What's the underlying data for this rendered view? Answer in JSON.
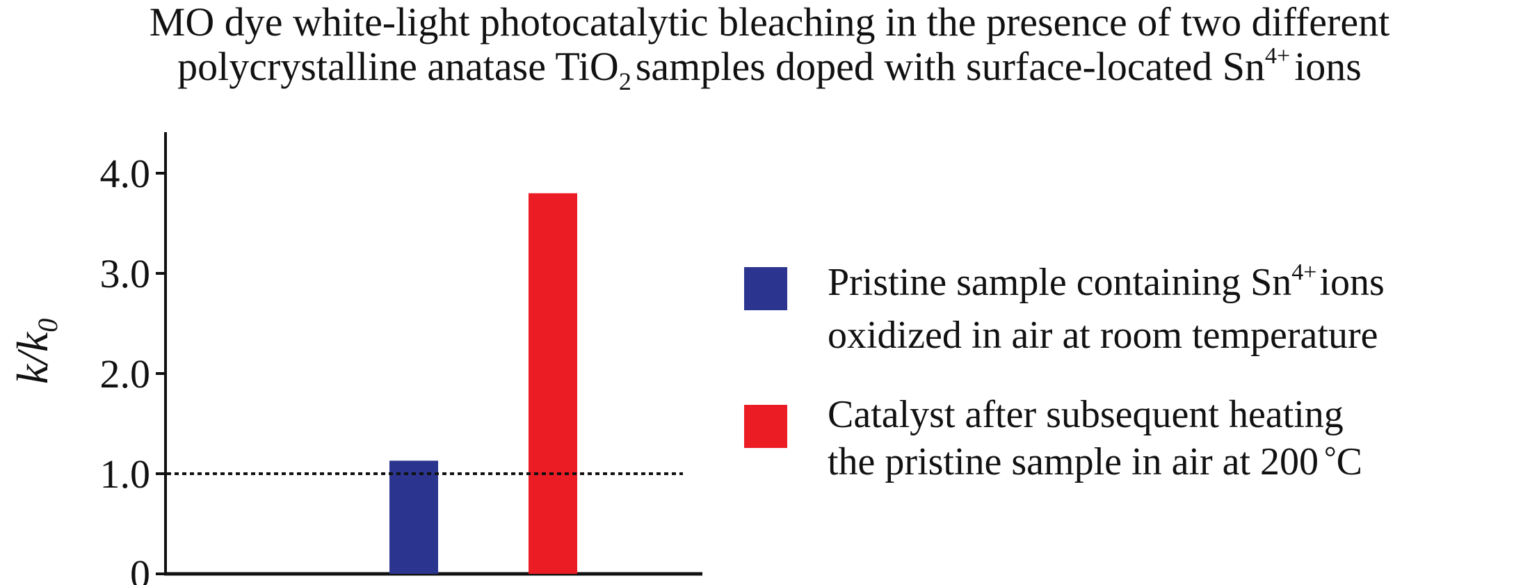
{
  "title": {
    "line1": "MO dye white-light photocatalytic bleaching in the presence of two different",
    "line2_a": "polycrystalline anatase TiO",
    "line2_sub": "2",
    "line2_b": "samples doped with surface-located Sn",
    "line2_sup": "4+",
    "line2_c": "ions"
  },
  "chart_data": {
    "type": "bar",
    "title": "MO dye white-light photocatalytic bleaching in the presence of two different polycrystalline anatase TiO2 samples doped with surface-located Sn4+ ions",
    "ylabel_main": "k/k",
    "ylabel_sub": "0",
    "xlabel": "",
    "ylim": [
      0,
      4.0
    ],
    "yticks": [
      {
        "value": 0,
        "label": "0"
      },
      {
        "value": 1.0,
        "label": "1.0"
      },
      {
        "value": 2.0,
        "label": "2.0"
      },
      {
        "value": 3.0,
        "label": "3.0"
      },
      {
        "value": 4.0,
        "label": "4.0"
      }
    ],
    "reference_line": 1.0,
    "bars": [
      {
        "value": 1.13,
        "color": "#2b3590"
      },
      {
        "value": 3.8,
        "color": "#ec1c24"
      }
    ],
    "grid": false,
    "legend_position": "right"
  },
  "legend": [
    {
      "color": "#2b3590",
      "line1_a": "Pristine sample containing Sn",
      "line1_sup": "4+",
      "line1_b": "ions",
      "line2": "oxidized in air at room temperature",
      "line2_deg": "",
      "line2_b": ""
    },
    {
      "color": "#ec1c24",
      "line1_a": "Catalyst after subsequent heating",
      "line1_sup": "",
      "line1_b": "",
      "line2": "the pristine sample in air at 200",
      "line2_deg": "°",
      "line2_b": "C"
    }
  ]
}
